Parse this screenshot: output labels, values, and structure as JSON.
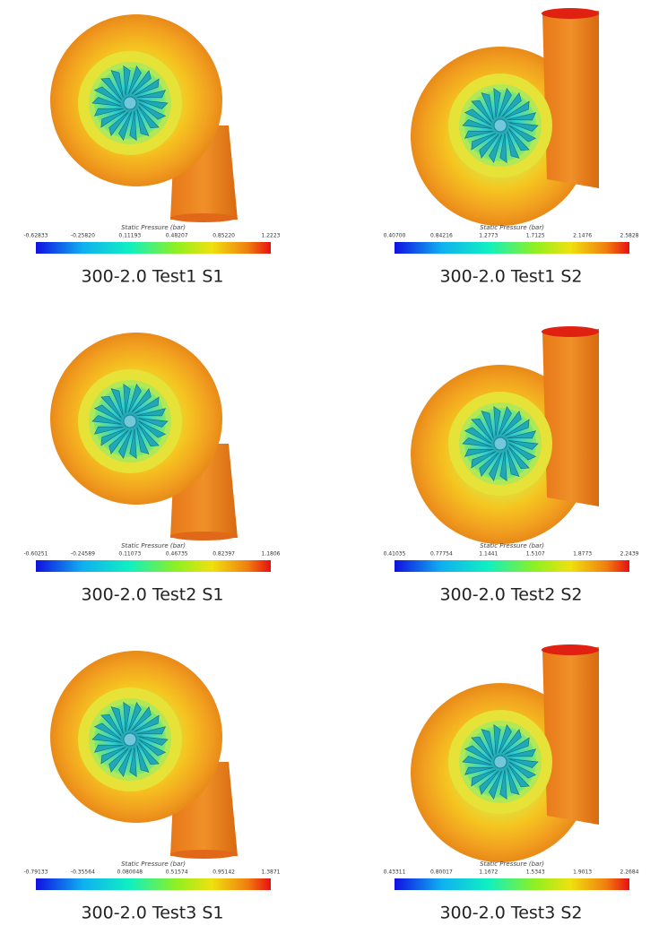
{
  "panels": [
    {
      "colorbar": {
        "title": "Static Pressure (bar)",
        "ticks": [
          "-0.62833",
          "-0.25820",
          "0.11193",
          "0.48207",
          "0.85220",
          "1.2223"
        ]
      },
      "caption": "300-2.0 Test1 S1"
    },
    {
      "colorbar": {
        "title": "Static Pressure (bar)",
        "ticks": [
          "0.40700",
          "0.84216",
          "1.2773",
          "1.7125",
          "2.1476",
          "2.5828"
        ]
      },
      "caption": "300-2.0 Test1 S2"
    },
    {
      "colorbar": {
        "title": "Static Pressure (bar)",
        "ticks": [
          "-0.60251",
          "-0.24589",
          "0.11073",
          "0.46735",
          "0.82397",
          "1.1806"
        ]
      },
      "caption": "300-2.0 Test2 S1"
    },
    {
      "colorbar": {
        "title": "Static Pressure (bar)",
        "ticks": [
          "0.41035",
          "0.77754",
          "1.1441",
          "1.5107",
          "1.8773",
          "2.2439"
        ]
      },
      "caption": "300-2.0 Test2 S2"
    },
    {
      "colorbar": {
        "title": "Static Pressure (bar)",
        "ticks": [
          "-0.79133",
          "-0.35564",
          "0.080048",
          "0.51574",
          "0.95142",
          "1.3871"
        ]
      },
      "caption": "300-2.0 Test3 S1"
    },
    {
      "colorbar": {
        "title": "Static Pressure (bar)",
        "ticks": [
          "0.43311",
          "0.80017",
          "1.1672",
          "1.5343",
          "1.9013",
          "2.2684"
        ]
      },
      "caption": "300-2.0 Test3 S2"
    }
  ]
}
